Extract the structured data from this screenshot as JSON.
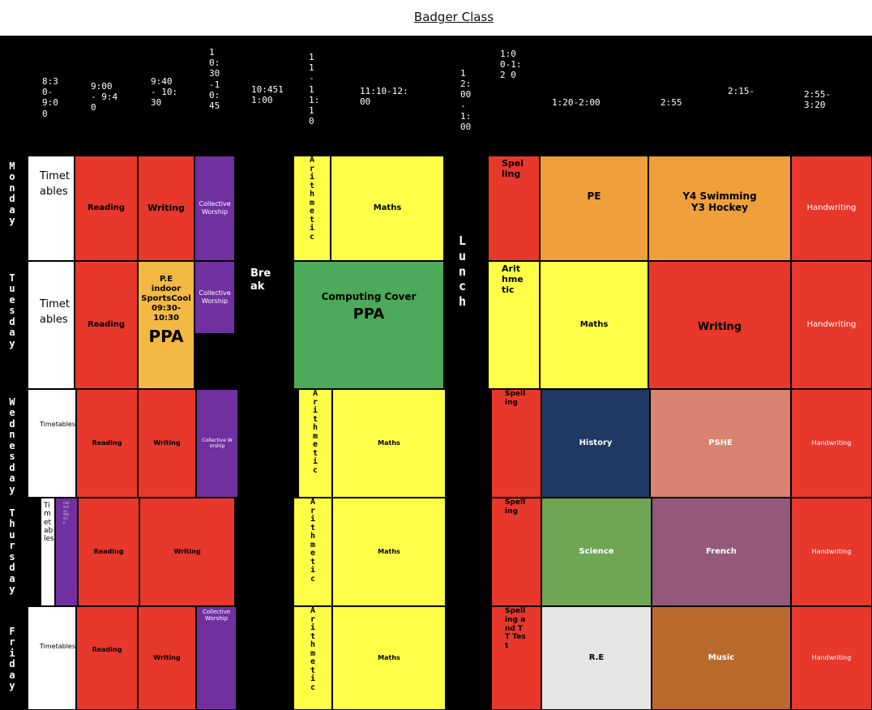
{
  "title": "Badger Class",
  "times": [
    "8:30-9:00",
    "9:00 - 9:40",
    "9:40 - 10:30",
    "10:30-10:45",
    "10:4511:00",
    "11-11:10",
    "11:10-12:00",
    "12:00-1:00",
    "1:0 0-1:2 0",
    "1:20-2:00",
    "2:55",
    "2:15-",
    "2:55-3:20"
  ],
  "days": [
    "Monday",
    "Tuesday",
    "Wednesday",
    "Thursday",
    "Friday"
  ],
  "breaks": {
    "break": "Break",
    "lunch": "Lunch"
  },
  "monday": {
    "timetables": "Timetables",
    "reading": "Reading",
    "writing": "Writing",
    "worship": "Collective Worship",
    "arithmetic": "Arithmetic",
    "maths": "Maths",
    "spelling": "Spelling",
    "pe": "PE",
    "swim1": "Y4 Swimming",
    "swim2": "Y3 Hockey",
    "handwriting": "Handwriting"
  },
  "tuesday": {
    "timetables": "Timetables",
    "reading": "Reading",
    "pe_lines": [
      "P.E",
      "indoor",
      "SportsCool",
      "09:30-",
      "10:30"
    ],
    "ppa": "PPA",
    "worship": "Collective Worship",
    "computing": "Computing Cover",
    "computing_ppa": "PPA",
    "arithmetic": "Arithmetic",
    "maths": "Maths",
    "writing": "Writing",
    "handwriting": "Handwriting"
  },
  "wednesday": {
    "timetables": "Timetables",
    "reading": "Reading",
    "writing": "Writing",
    "worship": "Collective Worship",
    "arithmetic": "Arithmetic",
    "maths": "Maths",
    "spelling": "Spelling",
    "history": "History",
    "pshe": "PSHE",
    "handwriting": "Handwriting"
  },
  "thursday": {
    "timetables": "Timetables",
    "purple": "Collective Worship",
    "reading": "Reading",
    "writing": "Writing",
    "arithmetic": "Arithmetic",
    "maths": "Maths",
    "spelling": "Spelling",
    "science": "Science",
    "french": "French",
    "handwriting": "Handwriting"
  },
  "friday": {
    "timetables": "Timetables",
    "reading": "Reading",
    "writing": "Writing",
    "worship": "Collective Worship",
    "arithmetic": "Arithmetic",
    "maths": "Maths",
    "spelling": "Spelling and TT Test",
    "re": "R.E",
    "music": "Music",
    "handwriting": "Handwriting"
  },
  "colors": {
    "red": "#e8372b",
    "yellow": "#ffff48",
    "purple": "#7030a0",
    "green": "#4caa5a",
    "orange": "#f0a03a",
    "navy": "#1f3864",
    "salmon": "#d88270",
    "science": "#6fa656",
    "french": "#94587a",
    "re": "#e6e6e6",
    "music": "#bb6a2d"
  }
}
